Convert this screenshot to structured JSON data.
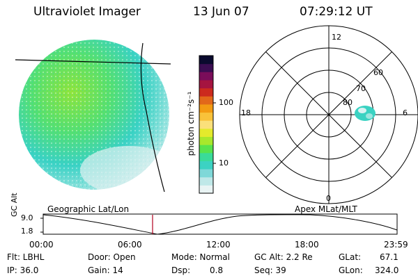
{
  "header": {
    "instrument": "Ultraviolet Imager",
    "date": "13 Jun 07",
    "time": "07:29:12 UT"
  },
  "colorbar": {
    "unit_label": "photon cm⁻²s⁻¹",
    "ticks": [
      "100",
      "10"
    ],
    "colors": [
      "#e9f4f4",
      "#bfe8e8",
      "#7fd8d8",
      "#3cd2c2",
      "#3adb99",
      "#58e34d",
      "#a8e82c",
      "#e4ea2c",
      "#fbe07a",
      "#f9c23a",
      "#f39b12",
      "#e2681a",
      "#cc2a1e",
      "#a51440",
      "#7a0d5a",
      "#3b0d52",
      "#0a0a2e"
    ]
  },
  "geo_panel": {
    "label": "Geographic Lat/Lon"
  },
  "polar_panel": {
    "label": "Apex MLat/MLT",
    "lat_labels": [
      "80",
      "70",
      "60"
    ],
    "mlt_labels": {
      "top": "12",
      "left": "18",
      "right": "6",
      "bottom": "0"
    }
  },
  "timeline": {
    "y_label": "GC Alt",
    "y_ticks": [
      "9.0",
      "1.8"
    ],
    "x_ticks": [
      "00:00",
      "06:00",
      "12:00",
      "18:00",
      "23:59"
    ],
    "marker_time": "07:29"
  },
  "footer": {
    "filter": "Flt: LBHL",
    "ip": "IP: 36.0",
    "door": "Door: Open",
    "gain": "Gain: 14",
    "mode": "Mode: Normal",
    "dsp_label": "Dsp:",
    "dsp_value": "0.8",
    "gc_alt": "GC Alt: 2.2 Re",
    "seq": "Seq: 39",
    "glat_label": "GLat:",
    "glat_value": "67.1",
    "glon_label": "GLon:",
    "glon_value": "324.0"
  }
}
